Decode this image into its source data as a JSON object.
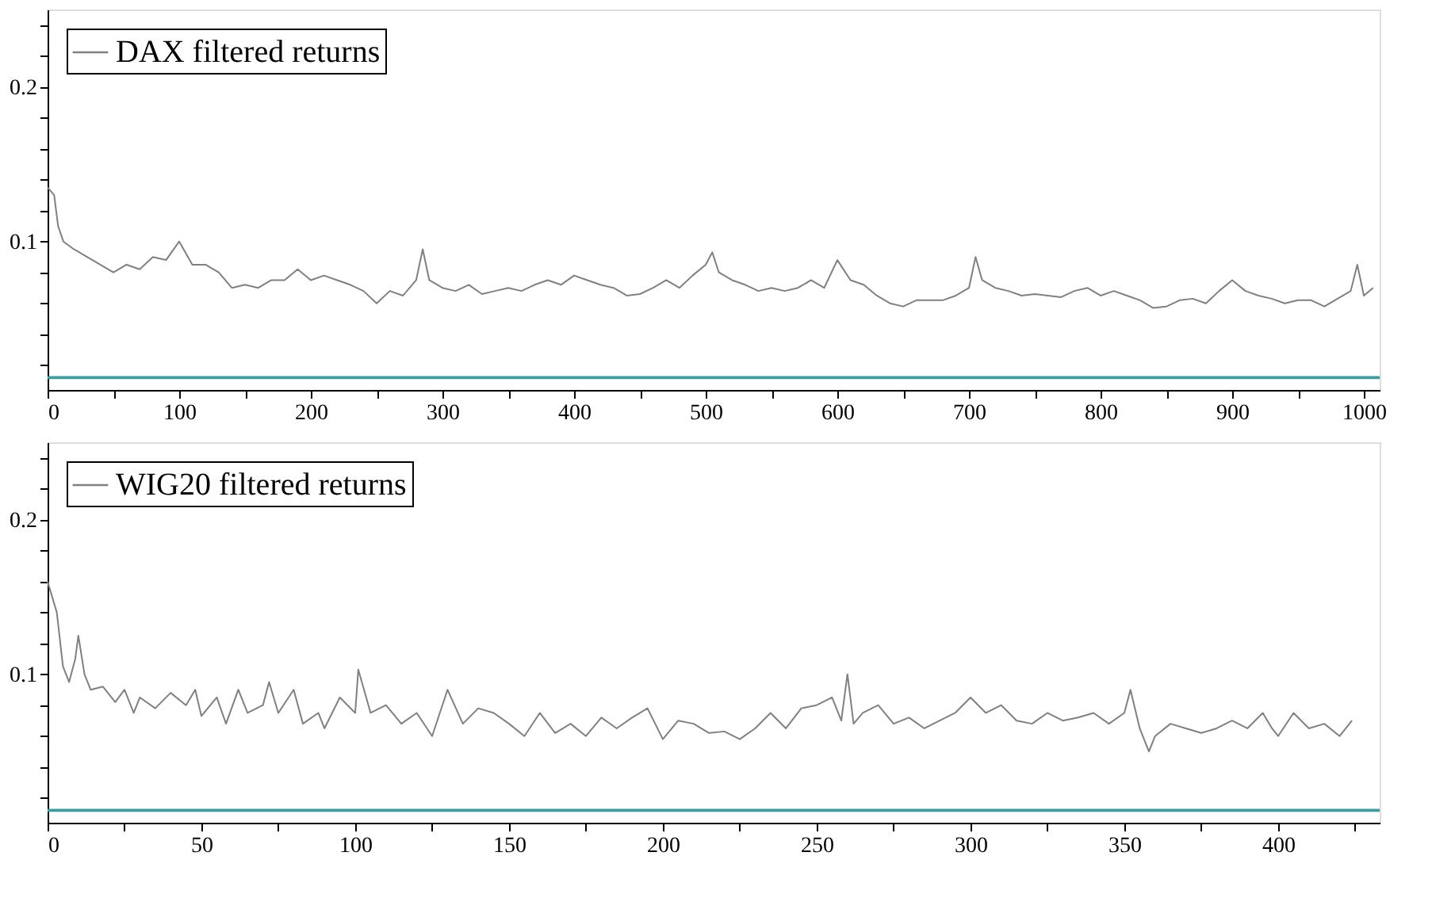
{
  "chart_data": [
    {
      "type": "line",
      "xlim": [
        0,
        1012
      ],
      "ylim": [
        0.004,
        0.25
      ],
      "legend": "top left",
      "grid": false,
      "marker": "none",
      "line_style": "solid",
      "xticks": [
        0,
        {
          "value": 50,
          "label": null
        },
        100,
        {
          "value": 150,
          "label": null
        },
        200,
        {
          "value": 250,
          "label": null
        },
        300,
        {
          "value": 350,
          "label": null
        },
        400,
        {
          "value": 450,
          "label": null
        },
        500,
        {
          "value": 550,
          "label": null
        },
        600,
        {
          "value": 650,
          "label": null
        },
        700,
        {
          "value": 750,
          "label": null
        },
        800,
        {
          "value": 850,
          "label": null
        },
        900,
        {
          "value": 950,
          "label": null
        },
        1000
      ],
      "yticks": [
        {
          "value": 0.02,
          "label": null
        },
        {
          "value": 0.04,
          "label": null
        },
        {
          "value": 0.06,
          "label": null
        },
        {
          "value": 0.08,
          "label": null
        },
        {
          "value": 0.1,
          "label": "0.1"
        },
        {
          "value": 0.12,
          "label": null
        },
        {
          "value": 0.14,
          "label": null
        },
        {
          "value": 0.16,
          "label": null
        },
        {
          "value": 0.18,
          "label": null
        },
        {
          "value": 0.2,
          "label": "0.2"
        },
        {
          "value": 0.22,
          "label": null
        },
        {
          "value": 0.24,
          "label": null
        }
      ],
      "ref_lines": [
        {
          "axis": "y",
          "value": 0.012,
          "color": "#3a9e9e"
        }
      ],
      "series": [
        {
          "name": "DAX filtered returns",
          "color": "#808080",
          "x": [
            0,
            5,
            8,
            12,
            20,
            30,
            40,
            50,
            60,
            70,
            80,
            90,
            100,
            110,
            120,
            130,
            140,
            150,
            160,
            170,
            180,
            190,
            200,
            210,
            220,
            230,
            240,
            250,
            260,
            270,
            280,
            285,
            290,
            300,
            310,
            320,
            330,
            340,
            350,
            360,
            370,
            380,
            390,
            400,
            410,
            420,
            430,
            440,
            450,
            460,
            470,
            480,
            490,
            500,
            505,
            510,
            520,
            530,
            540,
            550,
            560,
            570,
            580,
            590,
            600,
            610,
            620,
            630,
            640,
            650,
            660,
            670,
            680,
            690,
            700,
            705,
            710,
            720,
            730,
            740,
            750,
            760,
            770,
            780,
            790,
            800,
            810,
            820,
            830,
            840,
            850,
            860,
            870,
            880,
            890,
            900,
            910,
            920,
            930,
            940,
            950,
            960,
            970,
            980,
            990,
            995,
            1000,
            1007
          ],
          "values": [
            0.135,
            0.13,
            0.11,
            0.1,
            0.095,
            0.09,
            0.085,
            0.08,
            0.085,
            0.082,
            0.09,
            0.088,
            0.1,
            0.085,
            0.085,
            0.08,
            0.07,
            0.072,
            0.07,
            0.075,
            0.075,
            0.082,
            0.075,
            0.078,
            0.075,
            0.072,
            0.068,
            0.06,
            0.068,
            0.065,
            0.075,
            0.095,
            0.075,
            0.07,
            0.068,
            0.072,
            0.066,
            0.068,
            0.07,
            0.068,
            0.072,
            0.075,
            0.072,
            0.078,
            0.075,
            0.072,
            0.07,
            0.065,
            0.066,
            0.07,
            0.075,
            0.07,
            0.078,
            0.085,
            0.093,
            0.08,
            0.075,
            0.072,
            0.068,
            0.07,
            0.068,
            0.07,
            0.075,
            0.07,
            0.088,
            0.075,
            0.072,
            0.065,
            0.06,
            0.058,
            0.062,
            0.062,
            0.062,
            0.065,
            0.07,
            0.09,
            0.075,
            0.07,
            0.068,
            0.065,
            0.066,
            0.065,
            0.064,
            0.068,
            0.07,
            0.065,
            0.068,
            0.065,
            0.062,
            0.057,
            0.058,
            0.062,
            0.063,
            0.06,
            0.068,
            0.075,
            0.068,
            0.065,
            0.063,
            0.06,
            0.062,
            0.062,
            0.058,
            0.063,
            0.068,
            0.085,
            0.065,
            0.07
          ]
        }
      ]
    },
    {
      "type": "line",
      "xlim": [
        0,
        433
      ],
      "ylim": [
        0.004,
        0.25
      ],
      "legend": "top left",
      "grid": false,
      "marker": "none",
      "line_style": "solid",
      "xticks": [
        0,
        {
          "value": 25,
          "label": null
        },
        50,
        {
          "value": 75,
          "label": null
        },
        100,
        {
          "value": 125,
          "label": null
        },
        150,
        {
          "value": 175,
          "label": null
        },
        200,
        {
          "value": 225,
          "label": null
        },
        250,
        {
          "value": 275,
          "label": null
        },
        300,
        {
          "value": 325,
          "label": null
        },
        350,
        {
          "value": 375,
          "label": null
        },
        400,
        {
          "value": 425,
          "label": null
        }
      ],
      "yticks": [
        {
          "value": 0.02,
          "label": null
        },
        {
          "value": 0.04,
          "label": null
        },
        {
          "value": 0.06,
          "label": null
        },
        {
          "value": 0.08,
          "label": null
        },
        {
          "value": 0.1,
          "label": "0.1"
        },
        {
          "value": 0.12,
          "label": null
        },
        {
          "value": 0.14,
          "label": null
        },
        {
          "value": 0.16,
          "label": null
        },
        {
          "value": 0.18,
          "label": null
        },
        {
          "value": 0.2,
          "label": "0.2"
        },
        {
          "value": 0.22,
          "label": null
        },
        {
          "value": 0.24,
          "label": null
        }
      ],
      "ref_lines": [
        {
          "axis": "y",
          "value": 0.012,
          "color": "#3a9e9e"
        }
      ],
      "series": [
        {
          "name": "WIG20 filtered returns",
          "color": "#808080",
          "x": [
            0,
            3,
            5,
            7,
            9,
            10,
            12,
            14,
            18,
            22,
            25,
            28,
            30,
            35,
            40,
            45,
            48,
            50,
            55,
            58,
            62,
            65,
            70,
            72,
            75,
            80,
            83,
            88,
            90,
            95,
            100,
            101,
            105,
            110,
            115,
            120,
            125,
            130,
            135,
            140,
            145,
            150,
            155,
            160,
            165,
            170,
            175,
            180,
            185,
            190,
            195,
            200,
            205,
            210,
            215,
            220,
            225,
            230,
            235,
            240,
            245,
            250,
            255,
            258,
            260,
            262,
            265,
            270,
            275,
            280,
            285,
            290,
            295,
            300,
            305,
            310,
            315,
            320,
            325,
            330,
            335,
            340,
            345,
            350,
            352,
            355,
            358,
            360,
            365,
            370,
            375,
            380,
            385,
            390,
            395,
            398,
            400,
            405,
            410,
            415,
            420,
            424
          ],
          "values": [
            0.16,
            0.14,
            0.105,
            0.095,
            0.11,
            0.125,
            0.1,
            0.09,
            0.092,
            0.082,
            0.09,
            0.075,
            0.085,
            0.078,
            0.088,
            0.08,
            0.09,
            0.073,
            0.085,
            0.068,
            0.09,
            0.075,
            0.08,
            0.095,
            0.075,
            0.09,
            0.068,
            0.075,
            0.065,
            0.085,
            0.075,
            0.103,
            0.075,
            0.08,
            0.068,
            0.075,
            0.06,
            0.09,
            0.068,
            0.078,
            0.075,
            0.068,
            0.06,
            0.075,
            0.062,
            0.068,
            0.06,
            0.072,
            0.065,
            0.072,
            0.078,
            0.058,
            0.07,
            0.068,
            0.062,
            0.063,
            0.058,
            0.065,
            0.075,
            0.065,
            0.078,
            0.08,
            0.085,
            0.07,
            0.1,
            0.068,
            0.075,
            0.08,
            0.068,
            0.072,
            0.065,
            0.07,
            0.075,
            0.085,
            0.075,
            0.08,
            0.07,
            0.068,
            0.075,
            0.07,
            0.072,
            0.075,
            0.068,
            0.075,
            0.09,
            0.065,
            0.05,
            0.06,
            0.068,
            0.065,
            0.062,
            0.065,
            0.07,
            0.065,
            0.075,
            0.065,
            0.06,
            0.075,
            0.065,
            0.068,
            0.06,
            0.07
          ]
        }
      ]
    }
  ]
}
